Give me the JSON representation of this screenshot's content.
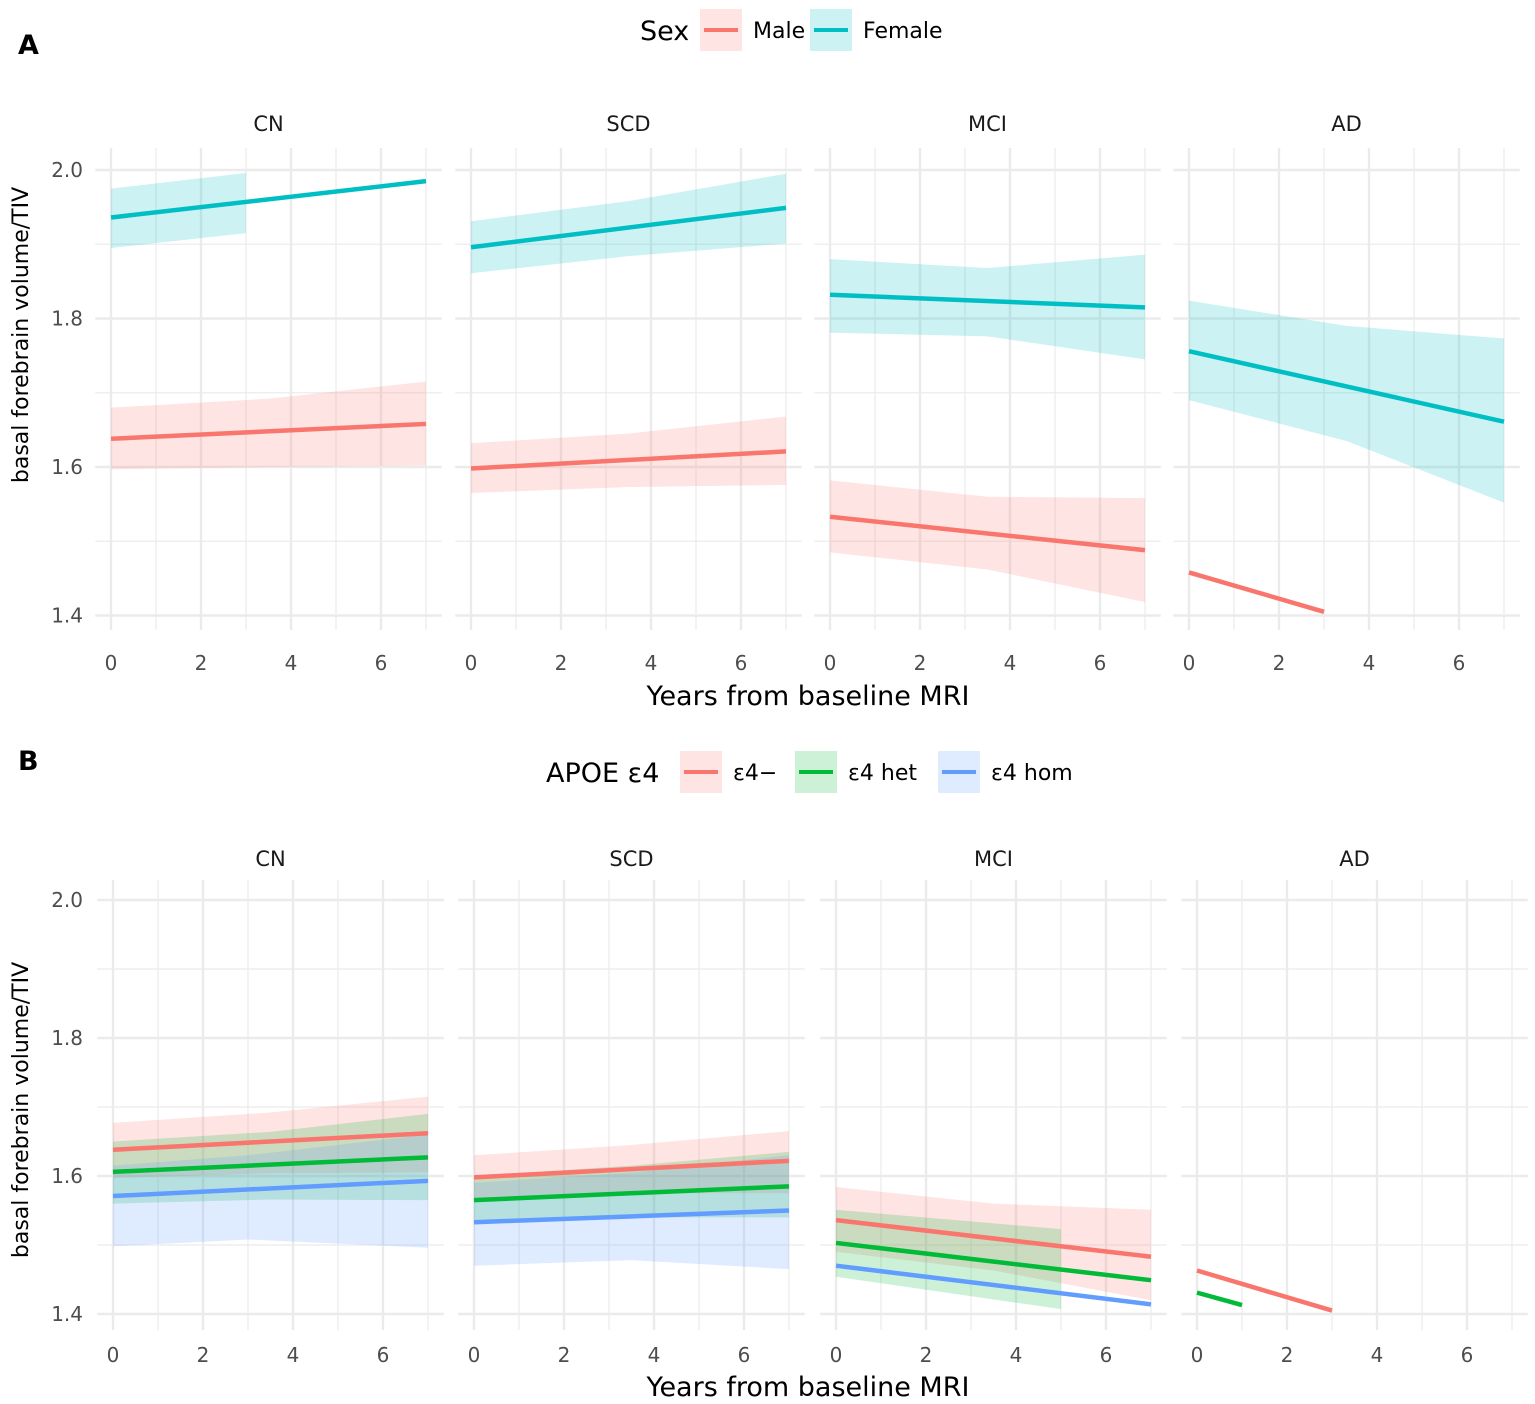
{
  "chart_data": [
    {
      "type": "line",
      "panel_tag": "A",
      "legend": {
        "title": "Sex",
        "position": "top",
        "entries": [
          {
            "label": "Male",
            "color": "#F8766D"
          },
          {
            "label": "Female",
            "color": "#00BFC4"
          }
        ]
      },
      "xlabel": "Years from baseline MRI",
      "ylabel": "basal forebrain volume/TIV",
      "xlim": [
        0,
        7
      ],
      "ylim": [
        1.4,
        2.0
      ],
      "xticks": [
        "0",
        "2",
        "4",
        "6"
      ],
      "yticks": [
        "1.4",
        "1.6",
        "1.8",
        "2.0"
      ],
      "grid": true,
      "facets": [
        {
          "label": "CN",
          "series": [
            {
              "name": "Male",
              "x": [
                0,
                7
              ],
              "y": [
                1.638,
                1.658
              ],
              "ribbon": [
                [
                  0,
                  1.597,
                  1.68
                ],
                [
                  3.5,
                  1.6,
                  1.692
                ],
                [
                  7,
                  1.602,
                  1.715
                ]
              ]
            },
            {
              "name": "Female",
              "x": [
                0,
                7
              ],
              "y": [
                1.936,
                1.985
              ],
              "ribbon": [
                [
                  0,
                  1.895,
                  1.975
                ],
                [
                  3,
                  1.915,
                  1.996
                ]
              ]
            }
          ]
        },
        {
          "label": "SCD",
          "series": [
            {
              "name": "Male",
              "x": [
                0,
                7
              ],
              "y": [
                1.598,
                1.621
              ],
              "ribbon": [
                [
                  0,
                  1.565,
                  1.632
                ],
                [
                  3.5,
                  1.573,
                  1.645
                ],
                [
                  7,
                  1.576,
                  1.668
                ]
              ]
            },
            {
              "name": "Female",
              "x": [
                0,
                7
              ],
              "y": [
                1.896,
                1.949
              ],
              "ribbon": [
                [
                  0,
                  1.861,
                  1.931
                ],
                [
                  3.5,
                  1.884,
                  1.958
                ],
                [
                  7,
                  1.901,
                  1.995
                ]
              ]
            }
          ]
        },
        {
          "label": "MCI",
          "series": [
            {
              "name": "Male",
              "x": [
                0,
                7
              ],
              "y": [
                1.533,
                1.488
              ],
              "ribbon": [
                [
                  0,
                  1.485,
                  1.582
                ],
                [
                  3.5,
                  1.462,
                  1.56
                ],
                [
                  7,
                  1.418,
                  1.558
                ]
              ]
            },
            {
              "name": "Female",
              "x": [
                0,
                7
              ],
              "y": [
                1.832,
                1.815
              ],
              "ribbon": [
                [
                  0,
                  1.781,
                  1.88
                ],
                [
                  3.5,
                  1.776,
                  1.868
                ],
                [
                  7,
                  1.745,
                  1.886
                ]
              ]
            }
          ]
        },
        {
          "label": "AD",
          "series": [
            {
              "name": "Male",
              "x": [
                0,
                3
              ],
              "y": [
                1.458,
                1.405
              ]
            },
            {
              "name": "Female",
              "x": [
                0,
                7
              ],
              "y": [
                1.756,
                1.661
              ],
              "ribbon": [
                [
                  0,
                  1.69,
                  1.824
                ],
                [
                  3.5,
                  1.635,
                  1.79
                ],
                [
                  7,
                  1.552,
                  1.773
                ]
              ]
            }
          ]
        }
      ]
    },
    {
      "type": "line",
      "panel_tag": "B",
      "legend": {
        "title": "APOE ε4",
        "position": "top",
        "entries": [
          {
            "label": "ε4−",
            "color": "#F8766D"
          },
          {
            "label": "ε4 het",
            "color": "#00BA38"
          },
          {
            "label": "ε4 hom",
            "color": "#619CFF"
          }
        ]
      },
      "xlabel": "Years from baseline MRI",
      "ylabel": "basal forebrain volume/TIV",
      "xlim": [
        0,
        7
      ],
      "ylim": [
        1.4,
        2.0
      ],
      "xticks": [
        "0",
        "2",
        "4",
        "6"
      ],
      "yticks": [
        "1.4",
        "1.6",
        "1.8",
        "2.0"
      ],
      "grid": true,
      "facets": [
        {
          "label": "CN",
          "series": [
            {
              "name": "ε4−",
              "x": [
                0,
                7
              ],
              "y": [
                1.638,
                1.662
              ],
              "ribbon": [
                [
                  0,
                  1.597,
                  1.677
                ],
                [
                  3.5,
                  1.604,
                  1.692
                ],
                [
                  7,
                  1.605,
                  1.715
                ]
              ]
            },
            {
              "name": "ε4 het",
              "x": [
                0,
                7
              ],
              "y": [
                1.606,
                1.627
              ],
              "ribbon": [
                [
                  0,
                  1.56,
                  1.65
                ],
                [
                  3.5,
                  1.566,
                  1.664
                ],
                [
                  7,
                  1.565,
                  1.69
                ]
              ]
            },
            {
              "name": "ε4 hom",
              "x": [
                0,
                7
              ],
              "y": [
                1.571,
                1.593
              ],
              "ribbon": [
                [
                  0,
                  1.498,
                  1.615
                ],
                [
                  3,
                  1.508,
                  1.63
                ],
                [
                  7,
                  1.496,
                  1.66
                ]
              ]
            }
          ]
        },
        {
          "label": "SCD",
          "series": [
            {
              "name": "ε4−",
              "x": [
                0,
                7
              ],
              "y": [
                1.598,
                1.622
              ],
              "ribbon": [
                [
                  0,
                  1.565,
                  1.63
                ],
                [
                  3.5,
                  1.575,
                  1.645
                ],
                [
                  7,
                  1.575,
                  1.665
                ]
              ]
            },
            {
              "name": "ε4 het",
              "x": [
                0,
                7
              ],
              "y": [
                1.565,
                1.585
              ],
              "ribbon": [
                [
                  0,
                  1.53,
                  1.6
                ],
                [
                  3.5,
                  1.54,
                  1.615
                ],
                [
                  7,
                  1.54,
                  1.635
                ]
              ]
            },
            {
              "name": "ε4 hom",
              "x": [
                0,
                7
              ],
              "y": [
                1.533,
                1.55
              ],
              "ribbon": [
                [
                  0,
                  1.47,
                  1.59
                ],
                [
                  3.5,
                  1.478,
                  1.605
                ],
                [
                  7,
                  1.465,
                  1.63
                ]
              ]
            }
          ]
        },
        {
          "label": "MCI",
          "series": [
            {
              "name": "ε4−",
              "x": [
                0,
                7
              ],
              "y": [
                1.536,
                1.483
              ],
              "ribbon": [
                [
                  0,
                  1.49,
                  1.584
                ],
                [
                  3.5,
                  1.463,
                  1.56
                ],
                [
                  7,
                  1.42,
                  1.551
                ]
              ]
            },
            {
              "name": "ε4 het",
              "x": [
                0,
                7
              ],
              "y": [
                1.503,
                1.449
              ],
              "ribbon": [
                [
                  0,
                  1.454,
                  1.551
                ],
                [
                  5,
                  1.407,
                  1.523
                ]
              ]
            },
            {
              "name": "ε4 hom",
              "x": [
                0,
                7
              ],
              "y": [
                1.47,
                1.414
              ]
            }
          ]
        },
        {
          "label": "AD",
          "series": [
            {
              "name": "ε4−",
              "x": [
                0,
                3
              ],
              "y": [
                1.463,
                1.405
              ]
            },
            {
              "name": "ε4 het",
              "x": [
                0,
                1
              ],
              "y": [
                1.431,
                1.413
              ]
            }
          ]
        }
      ]
    }
  ]
}
